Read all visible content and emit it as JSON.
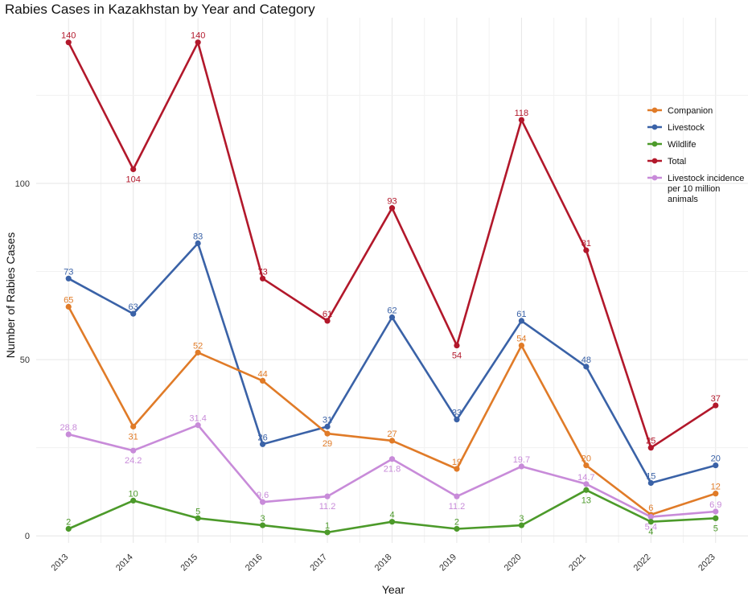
{
  "chart_data": {
    "type": "line",
    "title": "Rabies Cases in Kazakhstan by Year and Category",
    "xlabel": "Year",
    "ylabel": "Number of Rabies Cases",
    "x": [
      2013,
      2014,
      2015,
      2016,
      2017,
      2018,
      2019,
      2020,
      2021,
      2022,
      2023
    ],
    "ylim": [
      -2,
      147
    ],
    "yticks": [
      0,
      50,
      100
    ],
    "grid": true,
    "legend_position": "top-right",
    "series": [
      {
        "name": "Total",
        "color": "#b2182b",
        "values": [
          140,
          104,
          140,
          73,
          61,
          93,
          54,
          118,
          81,
          25,
          37
        ],
        "labels": [
          "140",
          "104",
          "140",
          "73",
          "61",
          "93",
          "54",
          "118",
          "81",
          "25",
          "37"
        ],
        "label_pos": [
          "above",
          "below",
          "above",
          "above",
          "above",
          "above",
          "below",
          "above",
          "above",
          "above",
          "above"
        ]
      },
      {
        "name": "Livestock",
        "color": "#3a62a7",
        "values": [
          73,
          63,
          83,
          26,
          31,
          62,
          33,
          61,
          48,
          15,
          20
        ],
        "labels": [
          "73",
          "63",
          "83",
          "26",
          "31",
          "62",
          "33",
          "61",
          "48",
          "15",
          "20"
        ],
        "label_pos": [
          "above",
          "above",
          "above",
          "above",
          "above",
          "above",
          "above",
          "above",
          "above",
          "above",
          "above"
        ]
      },
      {
        "name": "Companion",
        "color": "#e07b28",
        "values": [
          65,
          31,
          52,
          44,
          29,
          27,
          19,
          54,
          20,
          6,
          12
        ],
        "labels": [
          "65",
          "31",
          "52",
          "44",
          "29",
          "27",
          "19",
          "54",
          "20",
          "6",
          "12"
        ],
        "label_pos": [
          "above",
          "below",
          "above",
          "above",
          "below",
          "above",
          "above",
          "above",
          "above",
          "above",
          "above"
        ]
      },
      {
        "name": "Livestock incidence per 10 million animals",
        "color": "#c88bd9",
        "values": [
          28.8,
          24.2,
          31.4,
          9.6,
          11.2,
          21.8,
          11.2,
          19.7,
          14.7,
          5.4,
          6.9
        ],
        "labels": [
          "28.8",
          "24.2",
          "31.4",
          "9.6",
          "11.2",
          "21.8",
          "11.2",
          "19.7",
          "14.7",
          "5.4",
          "6.9"
        ],
        "label_pos": [
          "above",
          "below",
          "above",
          "above",
          "below",
          "below",
          "below",
          "above",
          "above",
          "below",
          "above"
        ]
      },
      {
        "name": "Wildlife",
        "color": "#4c9a2a",
        "values": [
          2,
          10,
          5,
          3,
          1,
          4,
          2,
          3,
          13,
          4,
          5
        ],
        "labels": [
          "2",
          "10",
          "5",
          "3",
          "1",
          "4",
          "2",
          "3",
          "13",
          "4",
          "5"
        ],
        "label_pos": [
          "above",
          "above",
          "above",
          "above",
          "above",
          "above",
          "above",
          "above",
          "below",
          "below",
          "below"
        ]
      }
    ],
    "legend": [
      {
        "name": "Companion",
        "color": "#e07b28",
        "lines": [
          "Companion"
        ]
      },
      {
        "name": "Livestock",
        "color": "#3a62a7",
        "lines": [
          "Livestock"
        ]
      },
      {
        "name": "Wildlife",
        "color": "#4c9a2a",
        "lines": [
          "Wildlife"
        ]
      },
      {
        "name": "Total",
        "color": "#b2182b",
        "lines": [
          "Total"
        ]
      },
      {
        "name": "Livestock incidence per 10 million animals",
        "color": "#c88bd9",
        "lines": [
          "Livestock incidence",
          "per 10 million",
          "animals"
        ]
      }
    ]
  }
}
